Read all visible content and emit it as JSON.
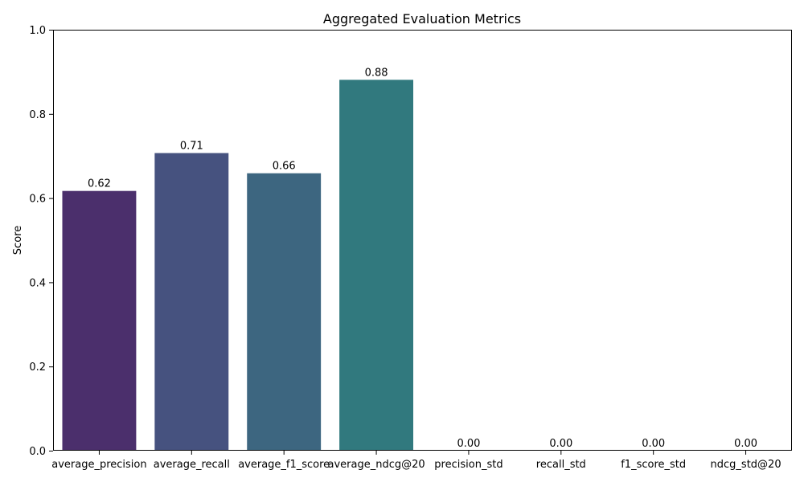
{
  "chart_data": {
    "type": "bar",
    "title": "Aggregated Evaluation Metrics",
    "xlabel": "",
    "ylabel": "Score",
    "ylim": [
      0,
      1.0
    ],
    "yticks": [
      0.0,
      0.2,
      0.4,
      0.6,
      0.8,
      1.0
    ],
    "ytick_labels": [
      "0.0",
      "0.2",
      "0.4",
      "0.6",
      "0.8",
      "1.0"
    ],
    "categories": [
      "average_precision",
      "average_recall",
      "average_f1_score",
      "average_ndcg@20",
      "precision_std",
      "recall_std",
      "f1_score_std",
      "ndcg_std@20"
    ],
    "values": [
      0.617,
      0.707,
      0.659,
      0.881,
      0.0,
      0.0,
      0.0,
      0.0
    ],
    "data_labels": [
      "0.62",
      "0.71",
      "0.66",
      "0.88",
      "0.00",
      "0.00",
      "0.00",
      "0.00"
    ],
    "colors": [
      "#4b2f6c",
      "#46527f",
      "#3d6680",
      "#31797e",
      "#2d8a7c",
      "#2e9a75",
      "#4aab69",
      "#72bb55"
    ],
    "grid": false,
    "legend": "none"
  }
}
